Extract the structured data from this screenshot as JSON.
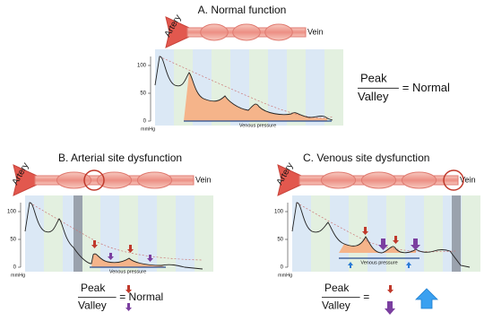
{
  "panels": [
    {
      "title": "A. Normal function",
      "artery": "Artery",
      "vein": "Vein",
      "yticks": [
        100,
        50,
        0
      ],
      "unit": "mmHg",
      "venous_pressure": "Venous pressure",
      "ratio": {
        "peak": "Peak",
        "valley": "Valley",
        "result": "= Normal"
      }
    },
    {
      "title": "B. Arterial site dysfunction",
      "artery": "Artery",
      "vein": "Vein",
      "yticks": [
        100,
        50,
        0
      ],
      "unit": "mmHg",
      "venous_pressure": "Venous pressure",
      "ratio": {
        "peak": "Peak",
        "valley": "Valley",
        "result": "= Normal"
      }
    },
    {
      "title": "C. Venous site dysfunction",
      "artery": "Artery",
      "vein": "Vein",
      "yticks": [
        100,
        50,
        0
      ],
      "unit": "mmHg",
      "venous_pressure": "Venous pressure",
      "ratio": {
        "peak": "Peak",
        "valley": "Valley",
        "result": "="
      }
    }
  ]
}
